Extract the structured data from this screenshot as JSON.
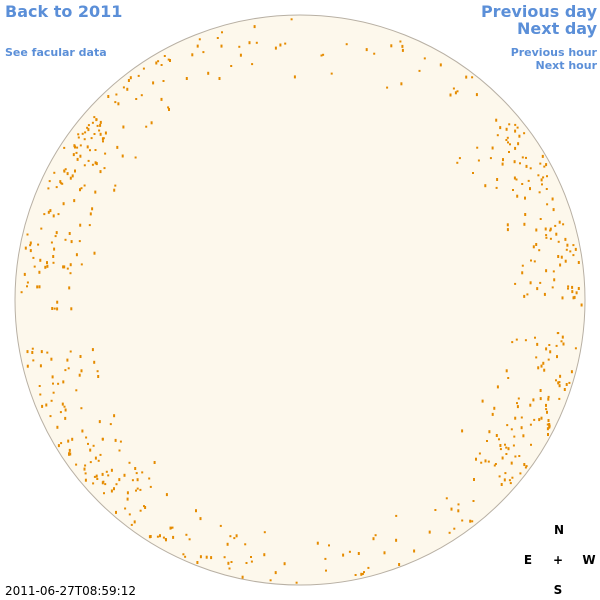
{
  "nav": {
    "back": "Back to 2011",
    "facular": "See facular data",
    "prev_day": "Previous day",
    "next_day": "Next day",
    "prev_hour": "Previous hour",
    "next_hour": "Next hour"
  },
  "compass": {
    "n": "N",
    "e": "E",
    "center": "+",
    "w": "W",
    "s": "S"
  },
  "timestamp": "2011-06-27T08:59:12"
}
